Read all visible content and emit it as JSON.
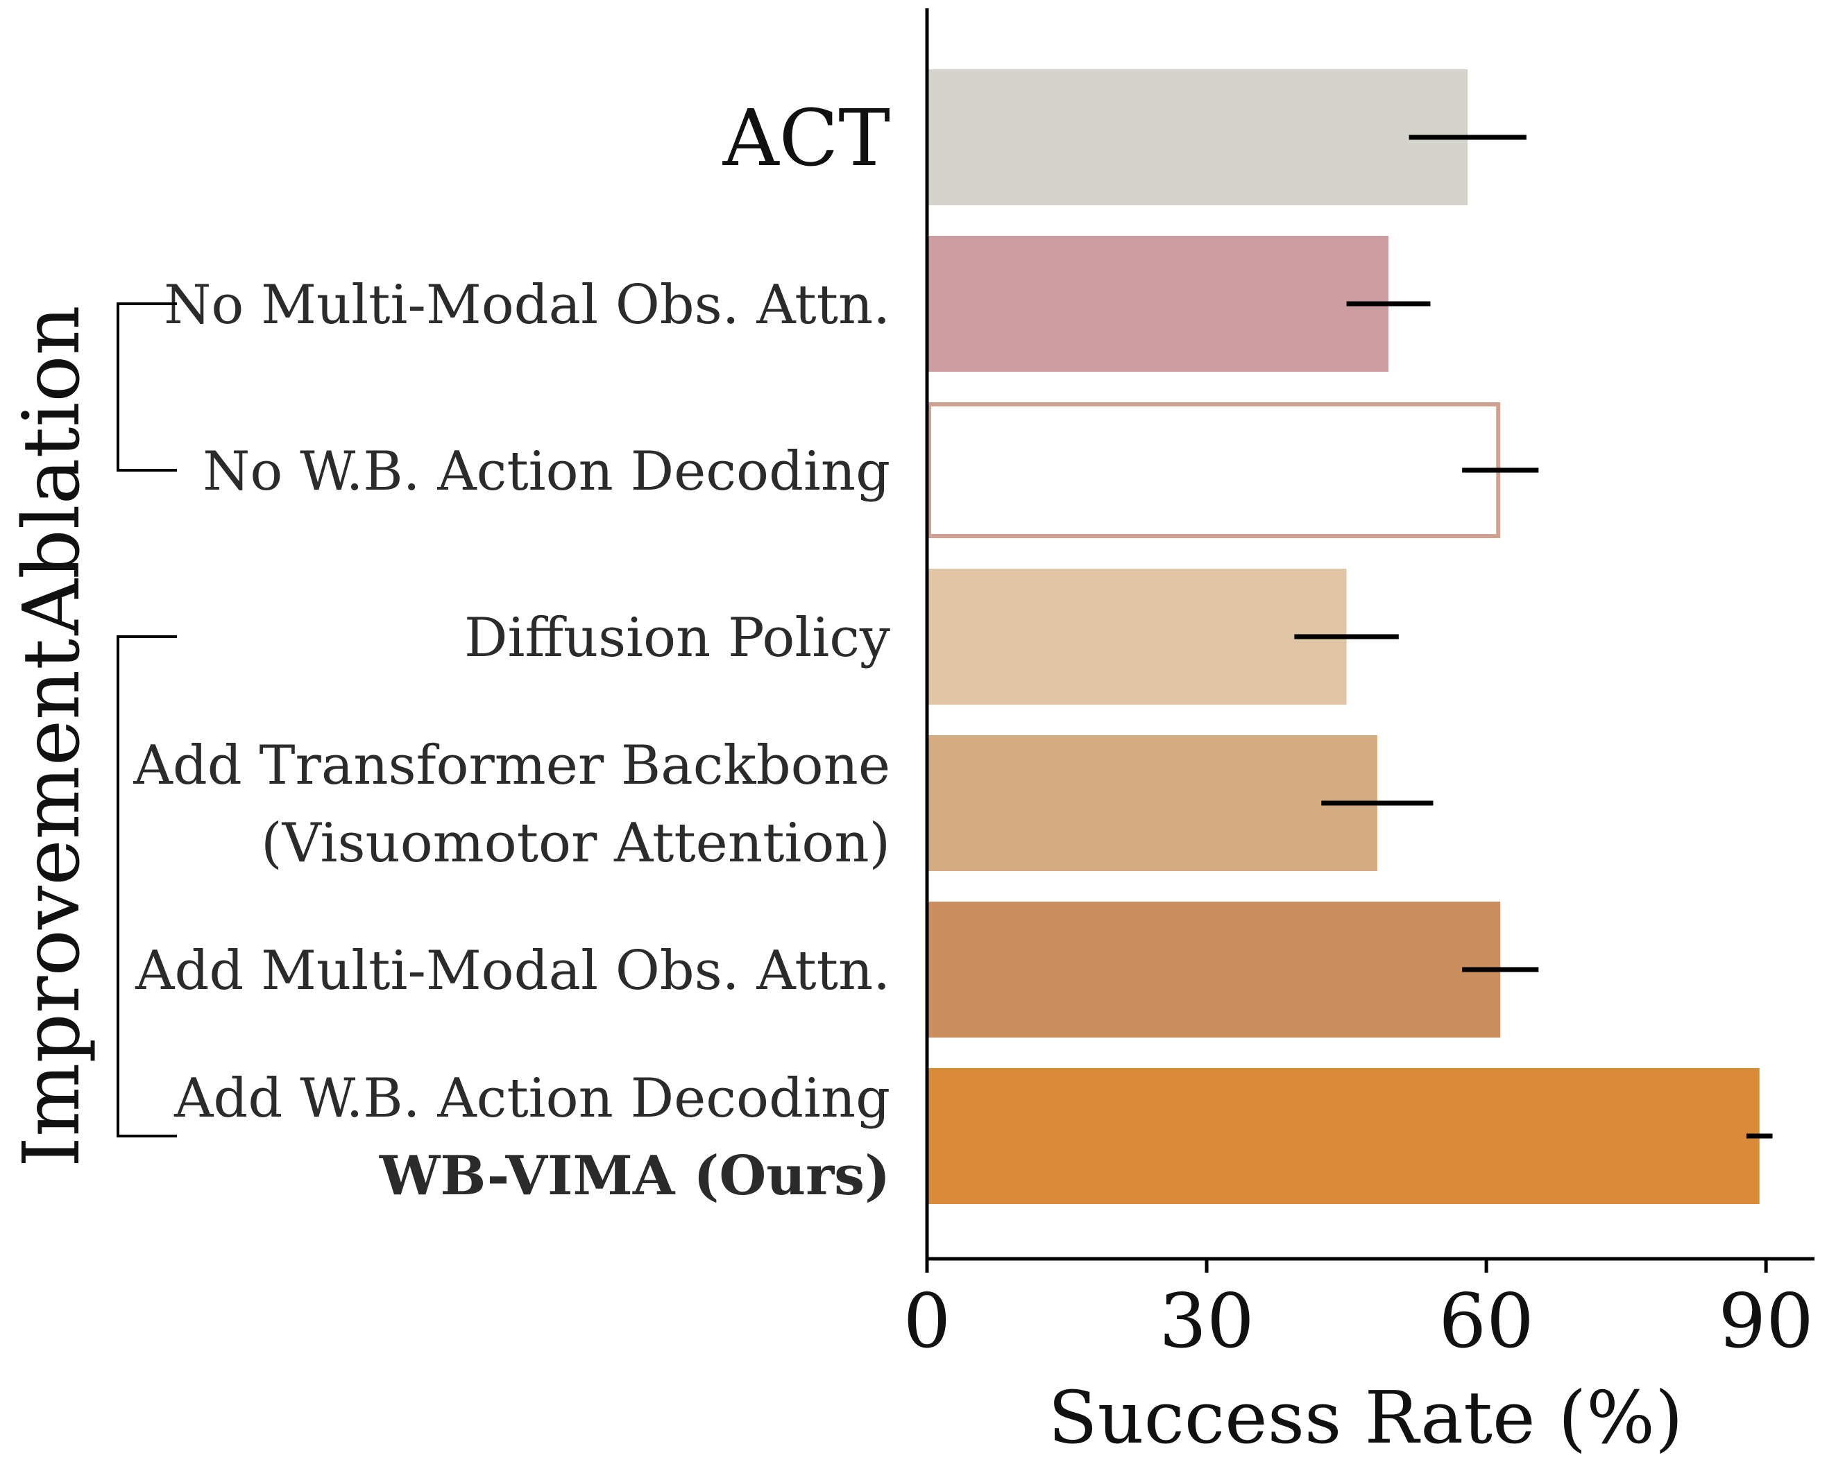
{
  "chart_data": {
    "type": "bar",
    "orientation": "horizontal",
    "categories": [
      [
        "ACT"
      ],
      [
        "No Multi-Modal Obs. Attn."
      ],
      [
        "No W.B. Action Decoding"
      ],
      [
        "Diffusion Policy"
      ],
      [
        "Add Transformer Backbone",
        "(Visuomotor Attention)"
      ],
      [
        "Add Multi-Modal Obs. Attn."
      ],
      [
        "Add W.B. Action Decoding",
        "WB-VIMA (Ours)"
      ]
    ],
    "values": [
      58,
      49.5,
      61.5,
      45,
      48.3,
      61.5,
      89.3
    ],
    "errors": [
      6.3,
      4.5,
      4.1,
      5.6,
      6.0,
      4.1,
      1.4
    ],
    "bar_colors": [
      "#d4d4cc",
      "#cc9ca0",
      "#ffffff",
      "#e0c5a6",
      "#d5ab82",
      "#cb8e5e",
      "#d98b38"
    ],
    "bar_edge_colors": [
      null,
      null,
      "#cfa190",
      null,
      null,
      null,
      null
    ],
    "error_bar_color": "#000000",
    "groups": [
      {
        "label": "Ablation",
        "members": [
          1,
          2
        ]
      },
      {
        "label": "Improvement",
        "members": [
          3,
          6
        ]
      }
    ],
    "xlabel": "Success Rate (%)",
    "xlim": [
      0,
      93
    ],
    "xticks": [
      0,
      30,
      60,
      90
    ],
    "grid": false
  }
}
